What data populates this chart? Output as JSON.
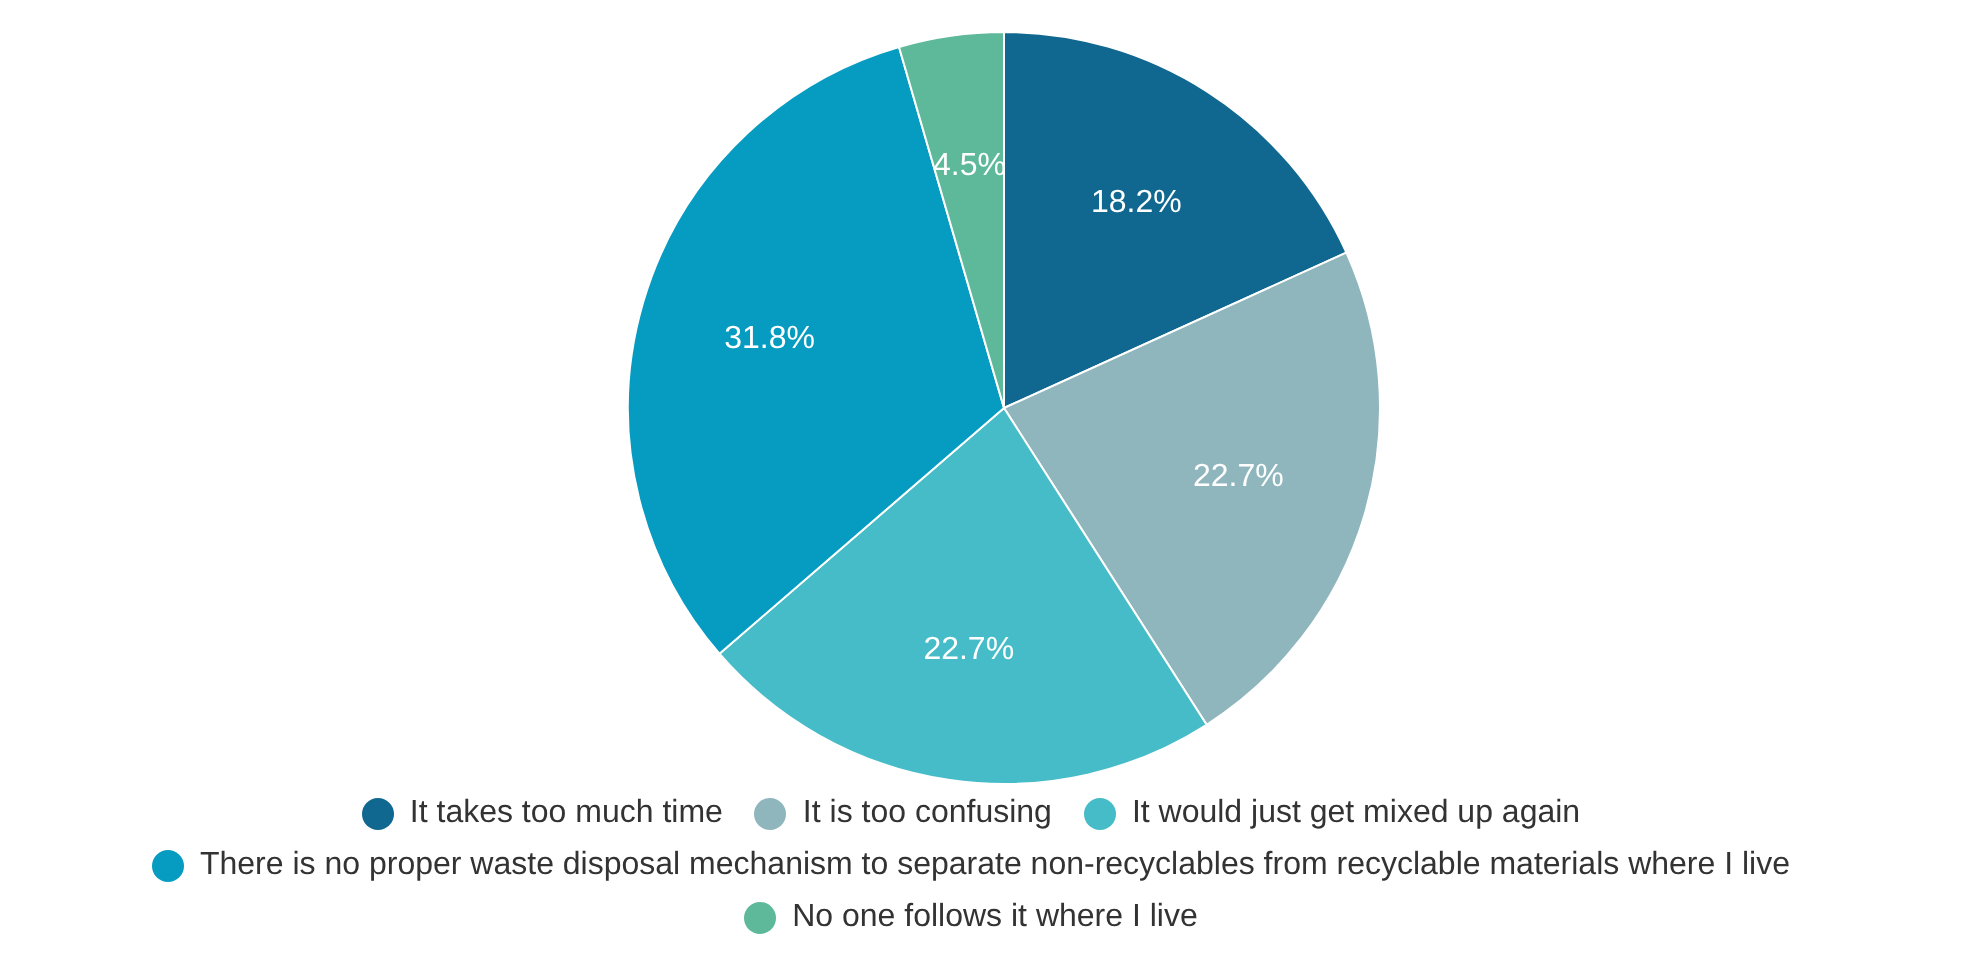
{
  "chart_data": {
    "type": "pie",
    "categories": [
      "It takes too much time",
      "It is too confusing",
      "It would just get mixed up again",
      "There is no proper waste disposal mechanism to separate non-recyclables from recyclable materials where I live",
      "No one follows it where I live"
    ],
    "values": [
      18.2,
      22.7,
      22.7,
      31.8,
      4.5
    ],
    "value_labels": [
      "18.2%",
      "22.7%",
      "22.7%",
      "31.8%",
      "4.5%"
    ],
    "colors": [
      "#10678f",
      "#8fb5bd",
      "#46bcc8",
      "#069cc2",
      "#5db99a"
    ],
    "legend": "bottom"
  }
}
